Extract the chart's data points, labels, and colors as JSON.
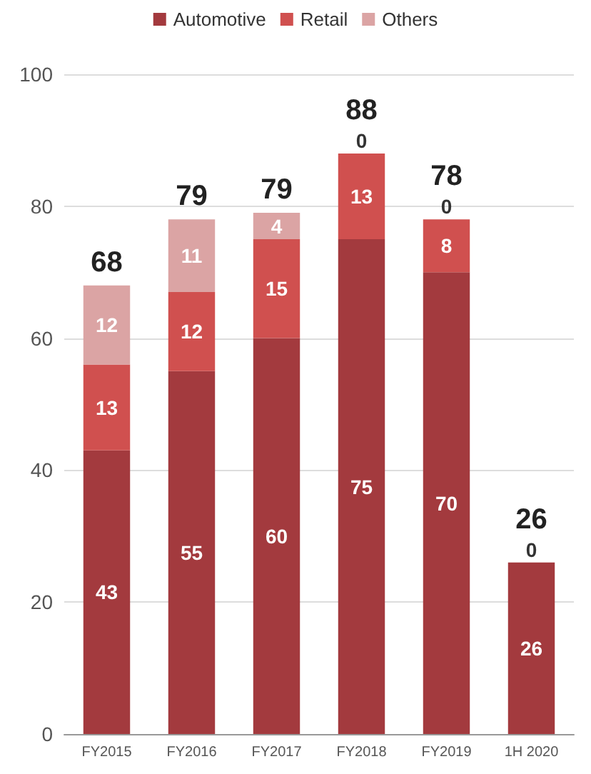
{
  "chart_data": {
    "type": "bar",
    "stacked": true,
    "categories": [
      "FY2015",
      "FY2016",
      "FY2017",
      "FY2018",
      "FY2019",
      "1H 2020"
    ],
    "series": [
      {
        "name": "Automotive",
        "color": "#a33a3e",
        "values": [
          43,
          55,
          60,
          75,
          70,
          26
        ],
        "value_labels": [
          "43",
          "55",
          "60",
          "75",
          "70",
          "26"
        ]
      },
      {
        "name": "Retail",
        "color": "#d0504f",
        "values": [
          13,
          12,
          15,
          13,
          8,
          0
        ],
        "value_labels": [
          "13",
          "12",
          "15",
          "13",
          "8",
          null
        ]
      },
      {
        "name": "Others",
        "color": "#dba4a4",
        "values": [
          12,
          11,
          4,
          0,
          0,
          0
        ],
        "value_labels": [
          "12",
          "11",
          "4",
          "0",
          "0",
          "0"
        ]
      }
    ],
    "ylim": [
      0,
      100
    ],
    "yticks": [
      0,
      20,
      40,
      60,
      80,
      100
    ],
    "grid": "y",
    "legend": "top",
    "totals": [
      "68",
      "79",
      "79",
      "88",
      "78",
      "26"
    ]
  }
}
